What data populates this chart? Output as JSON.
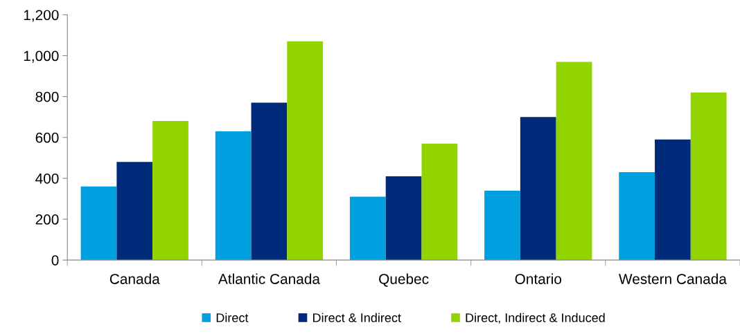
{
  "chart_data": {
    "type": "bar",
    "categories": [
      "Canada",
      "Atlantic Canada",
      "Quebec",
      "Ontario",
      "Western Canada"
    ],
    "series": [
      {
        "name": "Direct",
        "color": "#00a0e0",
        "values": [
          360,
          630,
          310,
          340,
          430
        ]
      },
      {
        "name": "Direct & Indirect",
        "color": "#002a7a",
        "values": [
          480,
          770,
          410,
          700,
          590
        ]
      },
      {
        "name": "Direct, Indirect & Induced",
        "color": "#92d400",
        "values": [
          680,
          1070,
          570,
          970,
          820
        ]
      }
    ],
    "ylim": [
      0,
      1200
    ],
    "yticks": [
      0,
      200,
      400,
      600,
      800,
      {
        "value": 1000,
        "label": "1,000"
      },
      {
        "value": 1200,
        "label": "1,200"
      }
    ],
    "grid": false,
    "legend": "bottom"
  }
}
